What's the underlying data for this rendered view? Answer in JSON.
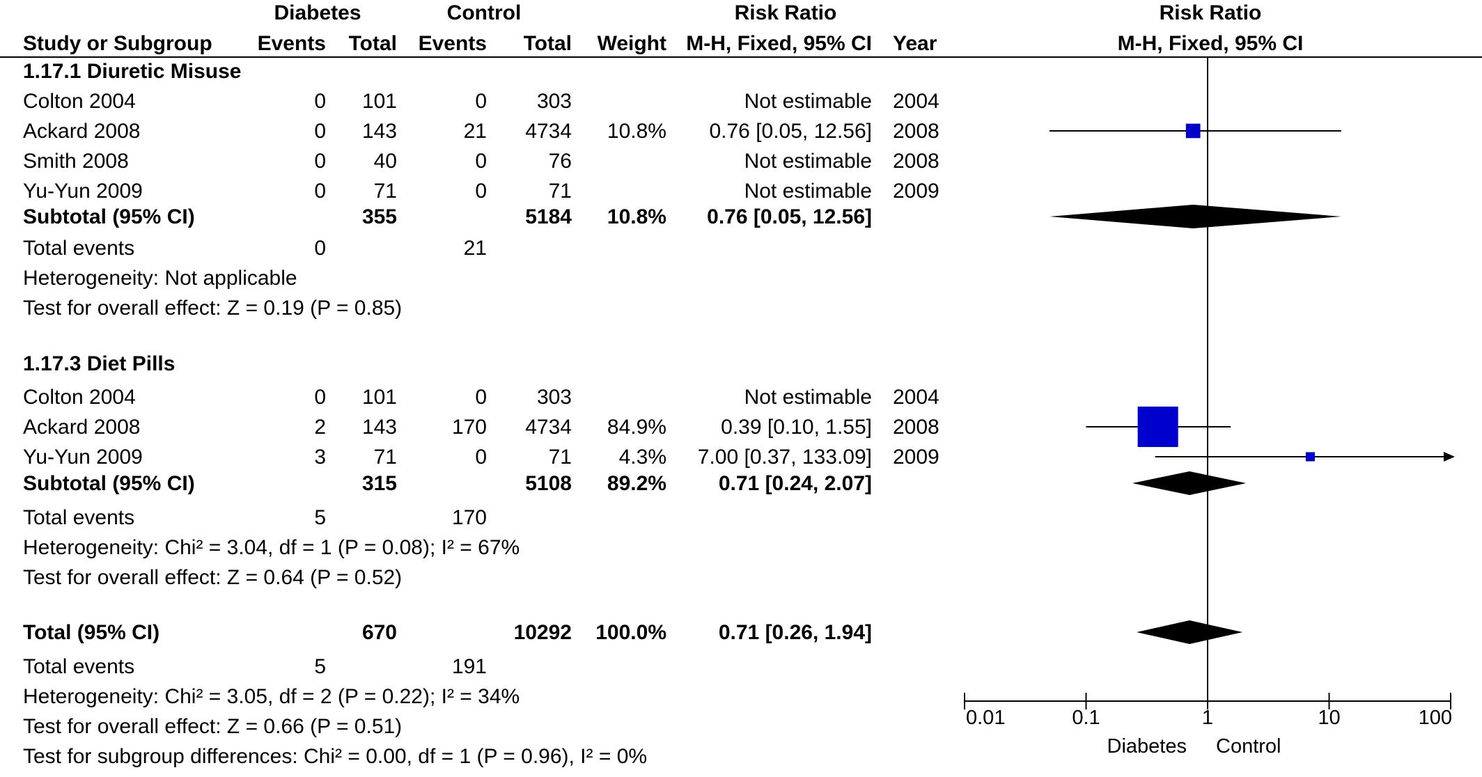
{
  "colors": {
    "marker": "#0000cc",
    "diamond": "#000000",
    "line": "#000000"
  },
  "headers": {
    "group_diabetes": "Diabetes",
    "group_control": "Control",
    "rr_table": "Risk Ratio",
    "rr_plot": "Risk Ratio",
    "study": "Study or Subgroup",
    "events1": "Events",
    "total1": "Total",
    "events2": "Events",
    "total2": "Total",
    "weight": "Weight",
    "method": "M-H, Fixed, 95% CI",
    "year": "Year",
    "plot_method": "M-H, Fixed, 95% CI"
  },
  "rows": [
    {
      "kind": "section",
      "study": "1.17.1 Diuretic Misuse"
    },
    {
      "kind": "study",
      "study": "Colton 2004",
      "e1": "0",
      "t1": "101",
      "e2": "0",
      "t2": "303",
      "weight": "",
      "ci": "Not estimable",
      "year": "2004"
    },
    {
      "kind": "study",
      "study": "Ackard 2008",
      "e1": "0",
      "t1": "143",
      "e2": "21",
      "t2": "4734",
      "weight": "10.8%",
      "ci": "0.76 [0.05, 12.56]",
      "year": "2008",
      "rr": 0.76,
      "lo": 0.05,
      "hi": 12.56,
      "w": 10.8
    },
    {
      "kind": "study",
      "study": "Smith 2008",
      "e1": "0",
      "t1": "40",
      "e2": "0",
      "t2": "76",
      "weight": "",
      "ci": "Not estimable",
      "year": "2008"
    },
    {
      "kind": "study",
      "study": "Yu-Yun 2009",
      "e1": "0",
      "t1": "71",
      "e2": "0",
      "t2": "71",
      "weight": "",
      "ci": "Not estimable",
      "year": "2009"
    },
    {
      "kind": "subtotal",
      "study": "Subtotal (95% CI)",
      "t1": "355",
      "t2": "5184",
      "weight": "10.8%",
      "ci": "0.76 [0.05, 12.56]",
      "rr": 0.76,
      "lo": 0.05,
      "hi": 12.56
    },
    {
      "kind": "events",
      "study": "Total events",
      "e1": "0",
      "e2": "21"
    },
    {
      "kind": "note",
      "study": "Heterogeneity: Not applicable"
    },
    {
      "kind": "note",
      "study": "Test for overall effect: Z = 0.19 (P = 0.85)"
    },
    {
      "kind": "section",
      "study": "1.17.3 Diet Pills"
    },
    {
      "kind": "study",
      "study": "Colton 2004",
      "e1": "0",
      "t1": "101",
      "e2": "0",
      "t2": "303",
      "weight": "",
      "ci": "Not estimable",
      "year": "2004"
    },
    {
      "kind": "study",
      "study": "Ackard 2008",
      "e1": "2",
      "t1": "143",
      "e2": "170",
      "t2": "4734",
      "weight": "84.9%",
      "ci": "0.39 [0.10, 1.55]",
      "year": "2008",
      "rr": 0.39,
      "lo": 0.1,
      "hi": 1.55,
      "w": 84.9
    },
    {
      "kind": "study",
      "study": "Yu-Yun 2009",
      "e1": "3",
      "t1": "71",
      "e2": "0",
      "t2": "71",
      "weight": "4.3%",
      "ci": "7.00 [0.37, 133.09]",
      "year": "2009",
      "rr": 7.0,
      "lo": 0.37,
      "hi": 133.09,
      "w": 4.3
    },
    {
      "kind": "subtotal",
      "study": "Subtotal (95% CI)",
      "t1": "315",
      "t2": "5108",
      "weight": "89.2%",
      "ci": "0.71 [0.24, 2.07]",
      "rr": 0.71,
      "lo": 0.24,
      "hi": 2.07
    },
    {
      "kind": "events",
      "study": "Total events",
      "e1": "5",
      "e2": "170"
    },
    {
      "kind": "note",
      "study": "Heterogeneity: Chi² = 3.04, df = 1 (P = 0.08); I² = 67%"
    },
    {
      "kind": "note",
      "study": "Test for overall effect: Z = 0.64 (P = 0.52)"
    },
    {
      "kind": "total",
      "study": "Total (95% CI)",
      "t1": "670",
      "t2": "10292",
      "weight": "100.0%",
      "ci": "0.71 [0.26, 1.94]",
      "rr": 0.71,
      "lo": 0.26,
      "hi": 1.94
    },
    {
      "kind": "events",
      "study": "Total events",
      "e1": "5",
      "e2": "191"
    },
    {
      "kind": "note",
      "study": "Heterogeneity: Chi² = 3.05, df = 2 (P = 0.22); I² = 34%"
    },
    {
      "kind": "note",
      "study": "Test for overall effect: Z = 0.66 (P = 0.51)"
    },
    {
      "kind": "note",
      "study": "Test for subgroup differences: Chi² = 0.00, df = 1 (P = 0.96), I² = 0%"
    }
  ],
  "axis": {
    "scale": "log",
    "ticks": [
      0.01,
      0.1,
      1,
      10,
      100
    ],
    "tick_labels": [
      "0.01",
      "0.1",
      "1",
      "10",
      "100"
    ],
    "favours_left": "Diabetes",
    "favours_right": "Control"
  },
  "chart_data": {
    "type": "forest",
    "title": "Risk Ratio",
    "subtitle": "M-H, Fixed, 95% CI",
    "xscale": "log",
    "xlim": [
      0.01,
      100
    ],
    "null_line": 1,
    "subgroups": [
      {
        "name": "1.17.1 Diuretic Misuse",
        "studies": [
          {
            "study": "Colton 2004",
            "events_diabetes": 0,
            "total_diabetes": 101,
            "events_control": 0,
            "total_control": 303,
            "weight": null,
            "rr": null,
            "year": 2004
          },
          {
            "study": "Ackard 2008",
            "events_diabetes": 0,
            "total_diabetes": 143,
            "events_control": 21,
            "total_control": 4734,
            "weight": 10.8,
            "rr": 0.76,
            "ci": [
              0.05,
              12.56
            ],
            "year": 2008
          },
          {
            "study": "Smith 2008",
            "events_diabetes": 0,
            "total_diabetes": 40,
            "events_control": 0,
            "total_control": 76,
            "weight": null,
            "rr": null,
            "year": 2008
          },
          {
            "study": "Yu-Yun 2009",
            "events_diabetes": 0,
            "total_diabetes": 71,
            "events_control": 0,
            "total_control": 71,
            "weight": null,
            "rr": null,
            "year": 2009
          }
        ],
        "subtotal": {
          "total_diabetes": 355,
          "total_control": 5184,
          "weight": 10.8,
          "rr": 0.76,
          "ci": [
            0.05,
            12.56
          ],
          "events_diabetes": 0,
          "events_control": 21
        }
      },
      {
        "name": "1.17.3 Diet Pills",
        "studies": [
          {
            "study": "Colton 2004",
            "events_diabetes": 0,
            "total_diabetes": 101,
            "events_control": 0,
            "total_control": 303,
            "weight": null,
            "rr": null,
            "year": 2004
          },
          {
            "study": "Ackard 2008",
            "events_diabetes": 2,
            "total_diabetes": 143,
            "events_control": 170,
            "total_control": 4734,
            "weight": 84.9,
            "rr": 0.39,
            "ci": [
              0.1,
              1.55
            ],
            "year": 2008
          },
          {
            "study": "Yu-Yun 2009",
            "events_diabetes": 3,
            "total_diabetes": 71,
            "events_control": 0,
            "total_control": 71,
            "weight": 4.3,
            "rr": 7.0,
            "ci": [
              0.37,
              133.09
            ],
            "year": 2009
          }
        ],
        "subtotal": {
          "total_diabetes": 315,
          "total_control": 5108,
          "weight": 89.2,
          "rr": 0.71,
          "ci": [
            0.24,
            2.07
          ],
          "events_diabetes": 5,
          "events_control": 170
        }
      }
    ],
    "overall": {
      "total_diabetes": 670,
      "total_control": 10292,
      "weight": 100.0,
      "rr": 0.71,
      "ci": [
        0.26,
        1.94
      ],
      "events_diabetes": 5,
      "events_control": 191
    }
  }
}
